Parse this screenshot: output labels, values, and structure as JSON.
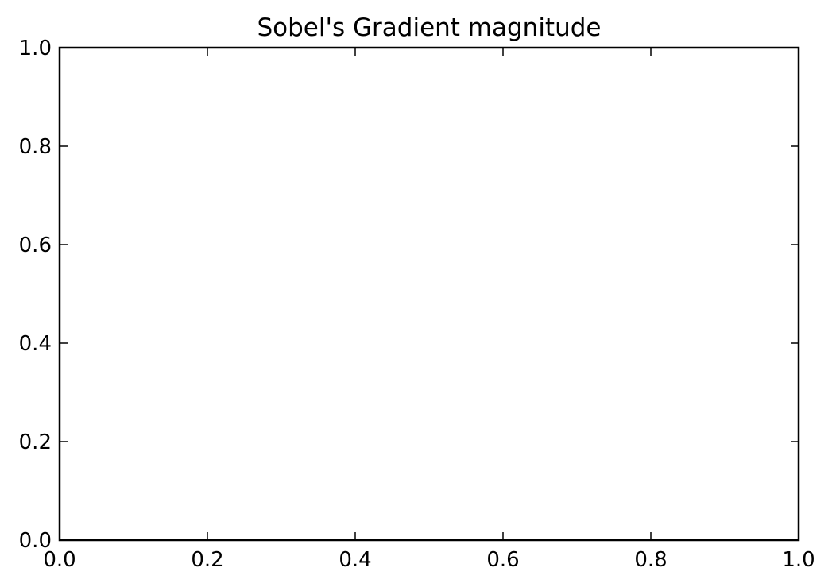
{
  "chart_data": {
    "type": "scatter",
    "title": "Sobel's Gradient magnitude",
    "xlabel": "",
    "ylabel": "",
    "xlim": [
      0.0,
      1.0
    ],
    "ylim": [
      0.0,
      1.0
    ],
    "x_ticks": [
      "0.0",
      "0.2",
      "0.4",
      "0.6",
      "0.8",
      "1.0"
    ],
    "y_ticks": [
      "0.0",
      "0.2",
      "0.4",
      "0.6",
      "0.8",
      "1.0"
    ],
    "x_tick_values": [
      0.0,
      0.2,
      0.4,
      0.6,
      0.8,
      1.0
    ],
    "y_tick_values": [
      0.0,
      0.2,
      0.4,
      0.6,
      0.8,
      1.0
    ],
    "series": [],
    "grid": false,
    "background": "#ffffff",
    "axis_color": "#000000"
  }
}
